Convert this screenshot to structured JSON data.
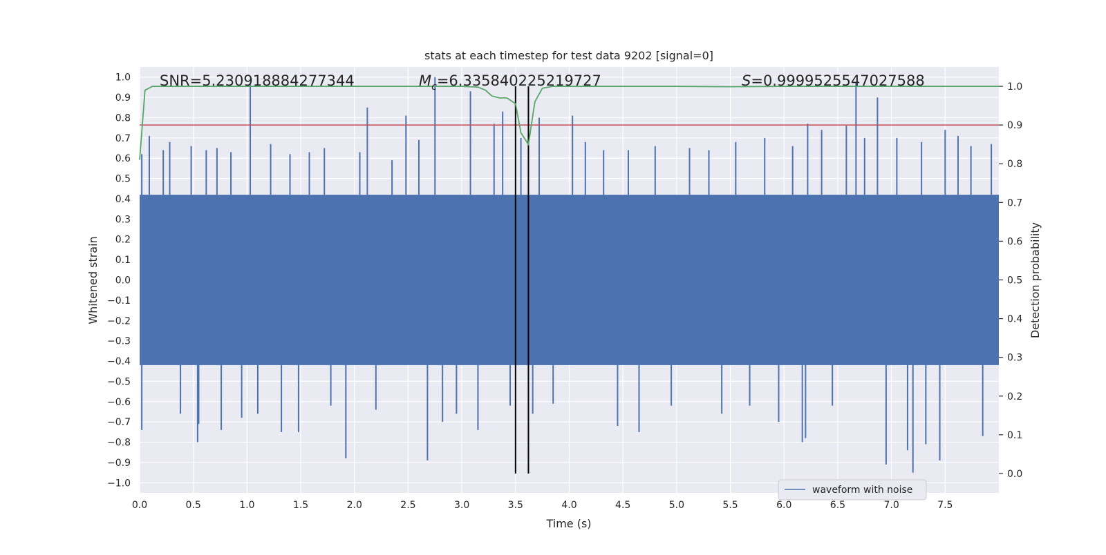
{
  "chart_data": {
    "type": "line",
    "title": "stats at each timestep for test data 9202 [signal=0]",
    "xlabel": "Time (s)",
    "ylabel": "Whitened strain",
    "y2label": "Detection probability",
    "xlim": [
      0.0,
      8.0
    ],
    "ylim": [
      -1.05,
      1.05
    ],
    "y2lim": [
      -0.05,
      1.05
    ],
    "x_ticks": [
      0.0,
      0.5,
      1.0,
      1.5,
      2.0,
      2.5,
      3.0,
      3.5,
      4.0,
      4.5,
      5.0,
      5.5,
      6.0,
      6.5,
      7.0,
      7.5
    ],
    "x_tick_labels": [
      "0.0",
      "0.5",
      "1.0",
      "1.5",
      "2.0",
      "2.5",
      "3.0",
      "3.5",
      "4.0",
      "4.5",
      "5.0",
      "5.5",
      "6.0",
      "6.5",
      "7.0",
      "7.5"
    ],
    "y_ticks": [
      1.0,
      0.9,
      0.8,
      0.7,
      0.6,
      0.5,
      0.4,
      0.3,
      0.2,
      0.1,
      0.0,
      -0.1,
      -0.2,
      -0.3,
      -0.4,
      -0.5,
      -0.6,
      -0.7,
      -0.8,
      -0.9,
      -1.0
    ],
    "y_tick_labels": [
      "1.0",
      "0.9",
      "0.8",
      "0.7",
      "0.6",
      "0.5",
      "0.4",
      "0.3",
      "0.2",
      "0.1",
      "0.0",
      "−0.1",
      "−0.2",
      "−0.3",
      "−0.4",
      "−0.5",
      "−0.6",
      "−0.7",
      "−0.8",
      "−0.9",
      "−1.0"
    ],
    "y2_ticks": [
      1.0,
      0.9,
      0.8,
      0.7,
      0.6,
      0.5,
      0.4,
      0.3,
      0.2,
      0.1,
      0.0
    ],
    "y2_tick_labels": [
      "1.0",
      "0.9",
      "0.8",
      "0.7",
      "0.6",
      "0.5",
      "0.4",
      "0.3",
      "0.2",
      "0.1",
      "0.0"
    ],
    "grid": true,
    "legend": {
      "placement": "lower-right",
      "entries": [
        {
          "label": "waveform with noise",
          "color": "#4c72b0"
        }
      ]
    },
    "annotations": {
      "snr": "SNR=5.230918884277344",
      "mc_symbol": "M",
      "mc_subscript": "c",
      "mc_value": "=6.335840225219727",
      "s_symbol": "S",
      "s_value": "=0.9999525547027588"
    },
    "waveform": {
      "name": "waveform with noise",
      "color": "#4c72b0",
      "axis": "left",
      "typical_range": [
        -0.42,
        0.42
      ],
      "spikes": [
        {
          "x": 0.02,
          "y": 0.62
        },
        {
          "x": 0.02,
          "y": -0.74
        },
        {
          "x": 0.09,
          "y": 0.71
        },
        {
          "x": 0.22,
          "y": 0.64
        },
        {
          "x": 0.28,
          "y": 0.68
        },
        {
          "x": 0.38,
          "y": -0.66
        },
        {
          "x": 0.48,
          "y": 0.66
        },
        {
          "x": 0.54,
          "y": -0.8
        },
        {
          "x": 0.55,
          "y": -0.71
        },
        {
          "x": 0.62,
          "y": 0.64
        },
        {
          "x": 0.72,
          "y": 0.65
        },
        {
          "x": 0.76,
          "y": -0.74
        },
        {
          "x": 0.85,
          "y": 0.63
        },
        {
          "x": 0.95,
          "y": -0.68
        },
        {
          "x": 1.03,
          "y": 0.97
        },
        {
          "x": 1.1,
          "y": -0.66
        },
        {
          "x": 1.22,
          "y": 0.67
        },
        {
          "x": 1.32,
          "y": -0.75
        },
        {
          "x": 1.4,
          "y": 0.62
        },
        {
          "x": 1.48,
          "y": -0.75
        },
        {
          "x": 1.58,
          "y": 0.63
        },
        {
          "x": 1.72,
          "y": 0.65
        },
        {
          "x": 1.78,
          "y": -0.62
        },
        {
          "x": 1.92,
          "y": -0.88
        },
        {
          "x": 2.05,
          "y": 0.63
        },
        {
          "x": 2.12,
          "y": 0.85
        },
        {
          "x": 2.2,
          "y": -0.64
        },
        {
          "x": 2.35,
          "y": 0.59
        },
        {
          "x": 2.48,
          "y": 0.81
        },
        {
          "x": 2.6,
          "y": 0.69
        },
        {
          "x": 2.68,
          "y": -0.89
        },
        {
          "x": 2.75,
          "y": 1.0
        },
        {
          "x": 2.82,
          "y": -0.7
        },
        {
          "x": 2.95,
          "y": -0.66
        },
        {
          "x": 3.08,
          "y": 0.93
        },
        {
          "x": 3.15,
          "y": -0.74
        },
        {
          "x": 3.3,
          "y": 0.77
        },
        {
          "x": 3.38,
          "y": 0.83
        },
        {
          "x": 3.45,
          "y": -0.62
        },
        {
          "x": 3.55,
          "y": 0.7
        },
        {
          "x": 3.66,
          "y": -0.66
        },
        {
          "x": 3.72,
          "y": 0.8
        },
        {
          "x": 3.85,
          "y": -0.61
        },
        {
          "x": 4.03,
          "y": 0.81
        },
        {
          "x": 4.15,
          "y": 0.68
        },
        {
          "x": 4.32,
          "y": 0.64
        },
        {
          "x": 4.45,
          "y": -0.72
        },
        {
          "x": 4.55,
          "y": 0.64
        },
        {
          "x": 4.65,
          "y": -0.75
        },
        {
          "x": 4.8,
          "y": 0.66
        },
        {
          "x": 4.95,
          "y": -0.62
        },
        {
          "x": 5.12,
          "y": 0.65
        },
        {
          "x": 5.3,
          "y": 0.64
        },
        {
          "x": 5.42,
          "y": -0.66
        },
        {
          "x": 5.55,
          "y": 0.68
        },
        {
          "x": 5.68,
          "y": -0.62
        },
        {
          "x": 5.82,
          "y": 0.7
        },
        {
          "x": 5.95,
          "y": -0.7
        },
        {
          "x": 6.08,
          "y": 0.66
        },
        {
          "x": 6.17,
          "y": -0.8
        },
        {
          "x": 6.2,
          "y": -0.78
        },
        {
          "x": 6.22,
          "y": 0.77
        },
        {
          "x": 6.35,
          "y": 0.74
        },
        {
          "x": 6.45,
          "y": -0.62
        },
        {
          "x": 6.58,
          "y": 0.76
        },
        {
          "x": 6.67,
          "y": 0.97
        },
        {
          "x": 6.75,
          "y": 0.7
        },
        {
          "x": 6.87,
          "y": 0.9
        },
        {
          "x": 6.95,
          "y": -0.91
        },
        {
          "x": 7.05,
          "y": 0.7
        },
        {
          "x": 7.15,
          "y": -0.84
        },
        {
          "x": 7.2,
          "y": -0.95
        },
        {
          "x": 7.28,
          "y": 0.68
        },
        {
          "x": 7.32,
          "y": -0.81
        },
        {
          "x": 7.45,
          "y": -0.89
        },
        {
          "x": 7.5,
          "y": 0.74
        },
        {
          "x": 7.62,
          "y": 0.71
        },
        {
          "x": 7.74,
          "y": 0.66
        },
        {
          "x": 7.85,
          "y": -0.77
        },
        {
          "x": 7.93,
          "y": 0.67
        }
      ]
    },
    "detection_probability": {
      "color": "#55a868",
      "axis": "right",
      "x": [
        0.0,
        0.05,
        0.12,
        0.5,
        1.0,
        2.0,
        3.0,
        3.15,
        3.22,
        3.28,
        3.35,
        3.42,
        3.5,
        3.55,
        3.62,
        3.68,
        3.75,
        3.85,
        4.0,
        5.0,
        5.5,
        6.0,
        7.0,
        8.0
      ],
      "y": [
        0.81,
        0.99,
        1.0,
        1.0,
        1.0,
        1.0,
        1.0,
        0.998,
        0.99,
        0.975,
        0.97,
        0.97,
        0.955,
        0.88,
        0.85,
        0.96,
        0.995,
        1.0,
        1.0,
        1.0,
        0.999,
        1.0,
        1.0,
        1.0
      ]
    },
    "threshold": {
      "value": 0.9,
      "axis": "right",
      "color": "#c44e52"
    },
    "vertical_lines": {
      "x": [
        3.5,
        3.62
      ],
      "color": "#000000",
      "y2_range": [
        0.0,
        1.0
      ]
    }
  }
}
